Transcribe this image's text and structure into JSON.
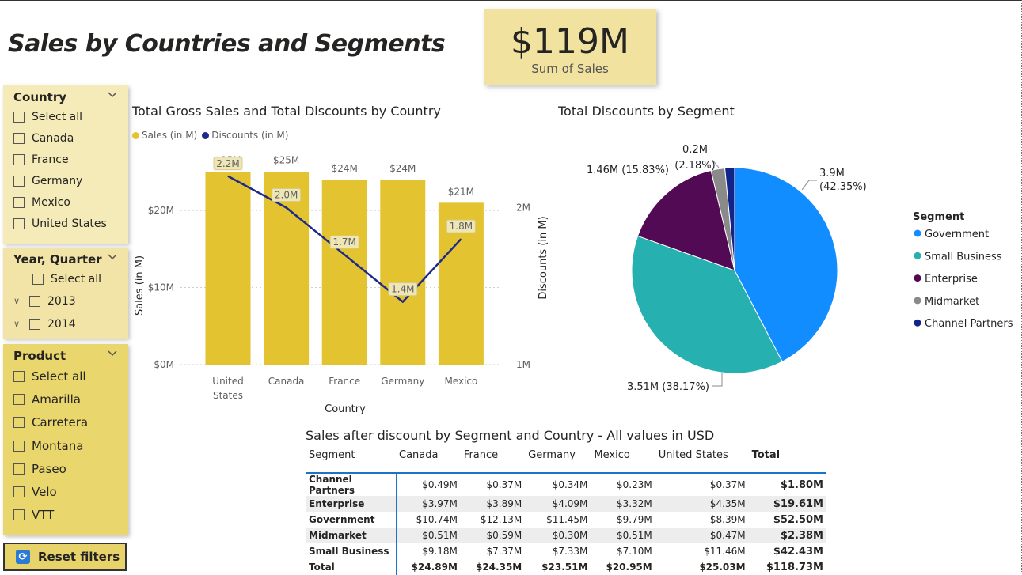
{
  "page_title": "Sales by Countries and Segments",
  "kpi": {
    "value": "$119M",
    "label": "Sum of  Sales"
  },
  "slicers": {
    "country": {
      "title": "Country",
      "options": [
        "Select all",
        "Canada",
        "France",
        "Germany",
        "Mexico",
        "United States"
      ]
    },
    "year_quarter": {
      "title": "Year, Quarter",
      "select_all": "Select all",
      "years": [
        "2013",
        "2014"
      ]
    },
    "product": {
      "title": "Product",
      "options": [
        "Select all",
        "Amarilla",
        "Carretera",
        "Montana",
        "Paseo",
        "Velo",
        "VTT"
      ]
    }
  },
  "reset_button": "Reset filters",
  "colors": {
    "slicer_light": "#f4ebb8",
    "slicer_mid": "#f2e4a6",
    "slicer_dark": "#e9d76e",
    "bar": "#e3c330",
    "line": "#1e2a8a"
  },
  "chart_data": [
    {
      "type": "bar",
      "title": "Total Gross Sales and Total Discounts by Country",
      "legend": [
        "Sales (in M)",
        "Discounts (in M)"
      ],
      "categories": [
        "United States",
        "Canada",
        "France",
        "Germany",
        "Mexico"
      ],
      "category_lines": [
        [
          "United",
          "States"
        ],
        [
          "Canada"
        ],
        [
          "France"
        ],
        [
          "Germany"
        ],
        [
          "Mexico"
        ]
      ],
      "series": [
        {
          "name": "Sales (in M)",
          "values": [
            25,
            25,
            24,
            24,
            21
          ],
          "labels": [
            "$25M",
            "$25M",
            "$24M",
            "$24M",
            "$21M"
          ]
        },
        {
          "name": "Discounts (in M)",
          "type": "line",
          "values": [
            2.2,
            2.0,
            1.7,
            1.4,
            1.8
          ],
          "labels": [
            "2.2M",
            "2.0M",
            "1.7M",
            "1.4M",
            "1.8M"
          ]
        }
      ],
      "xlabel": "Country",
      "ylabel": "Sales (in M)",
      "y2label": "Discounts (in M)",
      "ylim": [
        0,
        27.5
      ],
      "y2lim": [
        1,
        2.35
      ],
      "y_ticks": [
        {
          "v": 0,
          "t": "$0M"
        },
        {
          "v": 10,
          "t": "$10M"
        },
        {
          "v": 20,
          "t": "$20M"
        }
      ],
      "y2_ticks": [
        {
          "v": 1,
          "t": "1M"
        },
        {
          "v": 2,
          "t": "2M"
        }
      ]
    },
    {
      "type": "pie",
      "title": "Total Discounts by Segment",
      "legend_title": "Segment",
      "slices": [
        {
          "name": "Government",
          "value": 3.9,
          "pct": 42.35,
          "label": [
            "3.9M",
            "(42.35%)"
          ],
          "color": "#118dff"
        },
        {
          "name": "Small Business",
          "value": 3.51,
          "pct": 38.17,
          "label": [
            "3.51M (38.17%)"
          ],
          "color": "#26b0b0"
        },
        {
          "name": "Enterprise",
          "value": 1.46,
          "pct": 15.83,
          "label": [
            "1.46M (15.83%)"
          ],
          "color": "#530a54"
        },
        {
          "name": "Midmarket",
          "value": 0.2,
          "pct": 2.18,
          "label": [
            "0.2M",
            "(2.18%)"
          ],
          "color": "#8a8a8a"
        },
        {
          "name": "Channel Partners",
          "value": 0.14,
          "pct": 1.47,
          "label": [],
          "color": "#12238a"
        }
      ]
    }
  ],
  "table": {
    "title": "Sales after discount by Segment and Country - All values in USD",
    "columns": [
      "Segment",
      "Canada",
      "France",
      "Germany",
      "Mexico",
      "United States",
      "Total"
    ],
    "rows": [
      [
        "Channel Partners",
        "$0.49M",
        "$0.37M",
        "$0.34M",
        "$0.23M",
        "$0.37M",
        "$1.80M"
      ],
      [
        "Enterprise",
        "$3.97M",
        "$3.89M",
        "$4.09M",
        "$3.32M",
        "$4.35M",
        "$19.61M"
      ],
      [
        "Government",
        "$10.74M",
        "$12.13M",
        "$11.45M",
        "$9.79M",
        "$8.39M",
        "$52.50M"
      ],
      [
        "Midmarket",
        "$0.51M",
        "$0.59M",
        "$0.30M",
        "$0.51M",
        "$0.47M",
        "$2.38M"
      ],
      [
        "Small Business",
        "$9.18M",
        "$7.37M",
        "$7.33M",
        "$7.10M",
        "$11.46M",
        "$42.43M"
      ]
    ],
    "total_row": [
      "Total",
      "$24.89M",
      "$24.35M",
      "$23.51M",
      "$20.95M",
      "$25.03M",
      "$118.73M"
    ]
  }
}
